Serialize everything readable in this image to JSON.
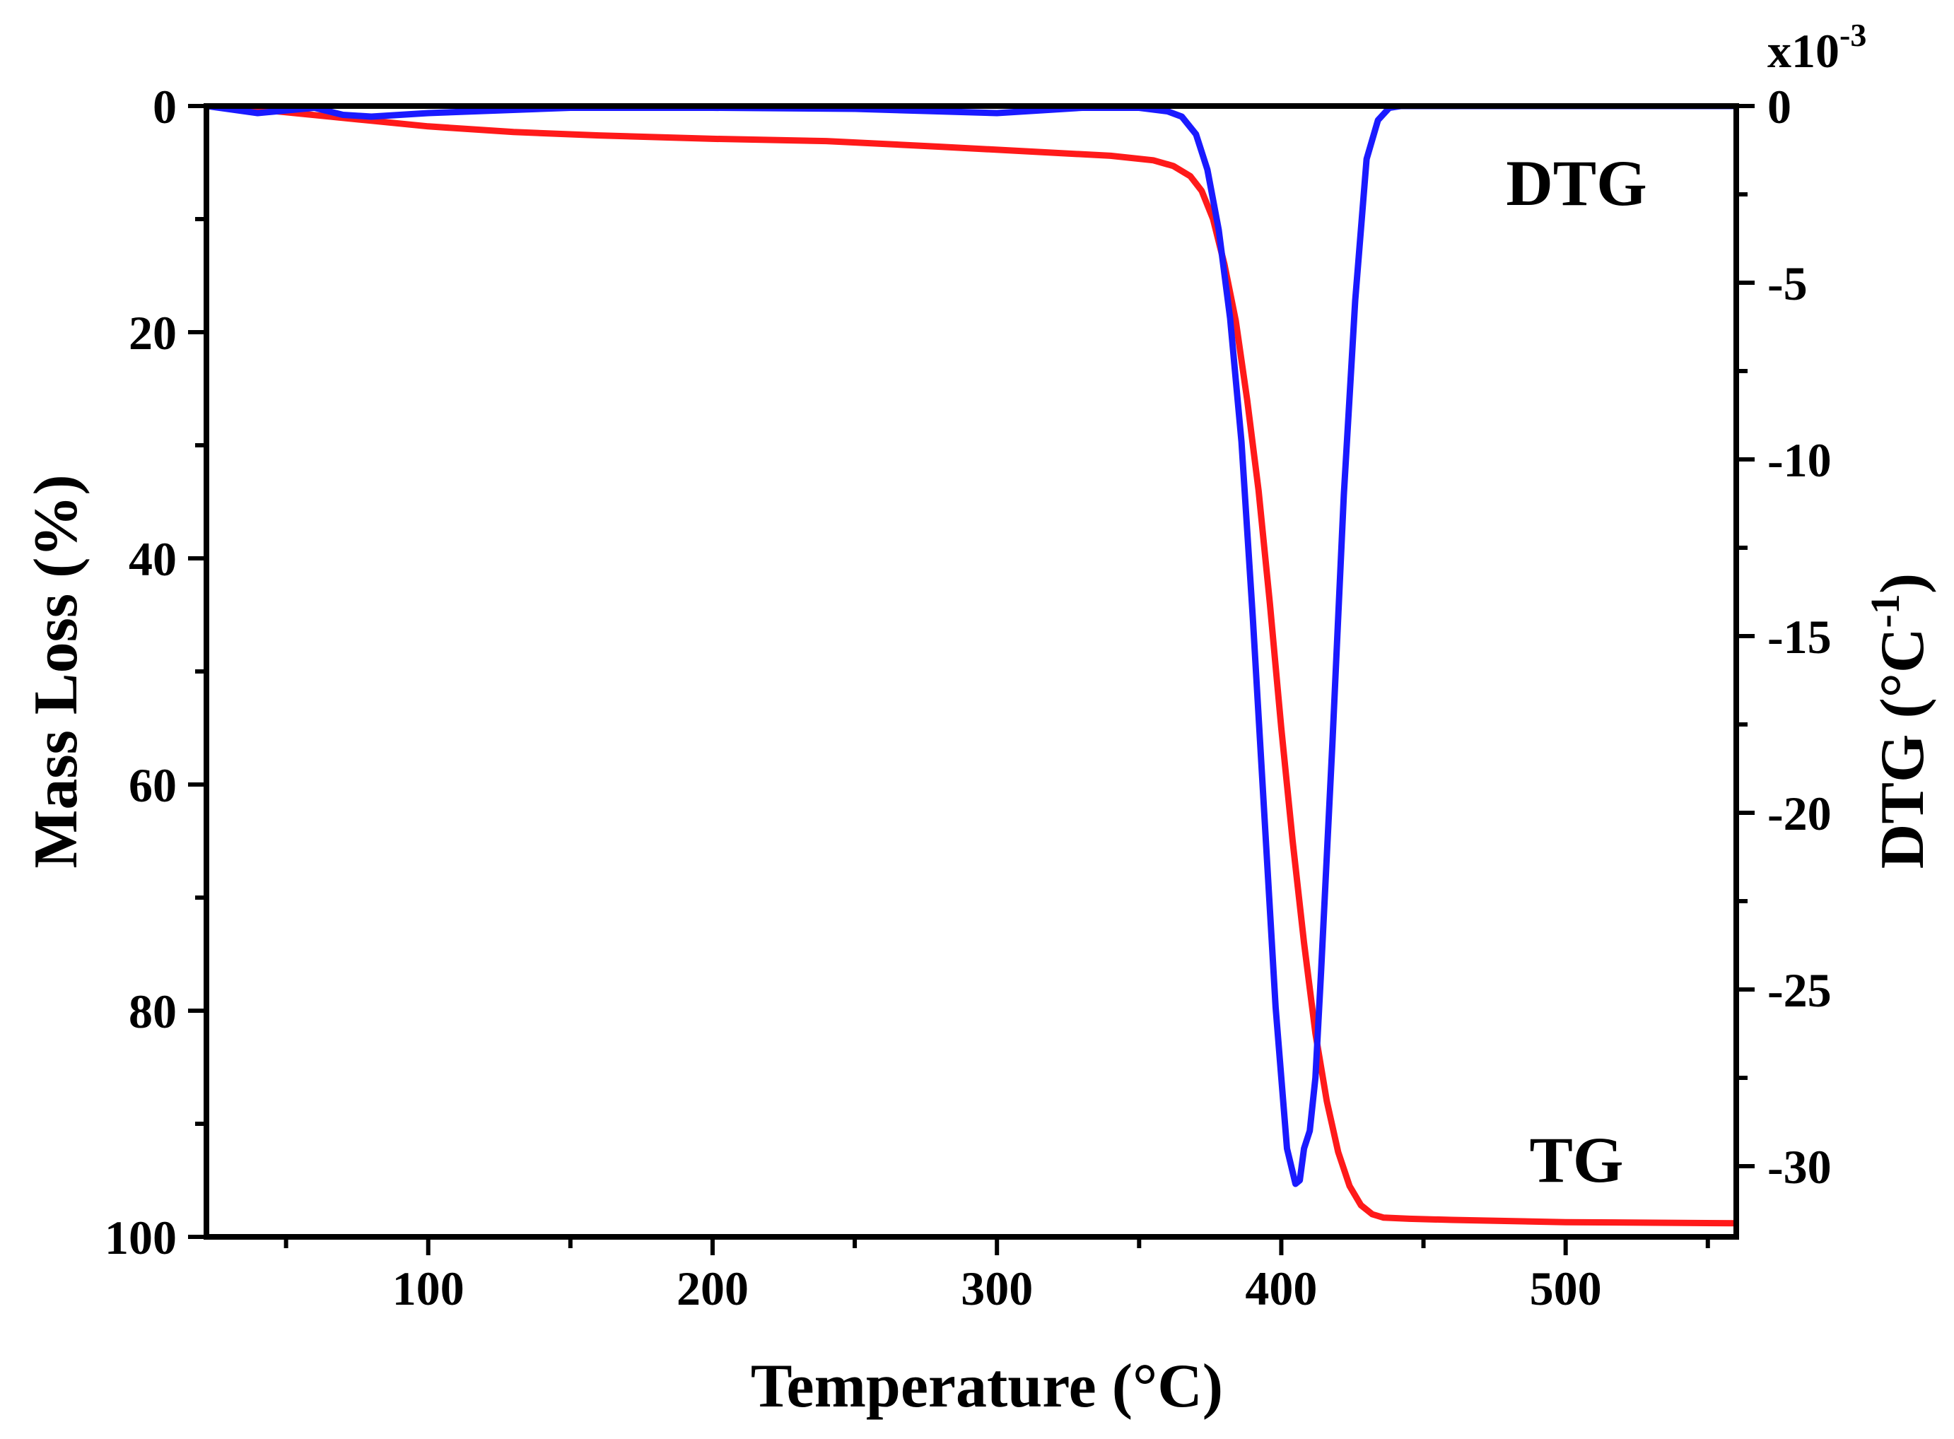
{
  "chart_data": {
    "type": "line",
    "x_axis": {
      "title": "Temperature (°C)",
      "range": [
        22,
        560
      ],
      "major_ticks": [
        100,
        200,
        300,
        400,
        500
      ],
      "minor_ticks": [
        50,
        150,
        250,
        350,
        450,
        550
      ]
    },
    "y_left": {
      "title": "Mass Loss (%)",
      "range": [
        0,
        100
      ],
      "inverted": true,
      "major_ticks": [
        0,
        20,
        40,
        60,
        80,
        100
      ],
      "minor_ticks": [
        10,
        30,
        50,
        70,
        90
      ]
    },
    "y_right": {
      "title_main": "DTG (°C",
      "title_sup": "-1",
      "title_close": ")",
      "multiplier_base": "x10",
      "multiplier_exp": "-3",
      "range": [
        0,
        -32
      ],
      "major_ticks": [
        0,
        -5,
        -10,
        -15,
        -20,
        -25,
        -30
      ],
      "minor_ticks": [
        -2.5,
        -7.5,
        -12.5,
        -17.5,
        -22.5,
        -27.5
      ]
    },
    "series": [
      {
        "name": "TG",
        "label": "TG",
        "axis": "left",
        "color": "#ff1a1a",
        "x": [
          22,
          40,
          60,
          80,
          100,
          130,
          160,
          200,
          240,
          280,
          310,
          340,
          355,
          362,
          368,
          372,
          376,
          380,
          384,
          388,
          392,
          396,
          400,
          404,
          408,
          412,
          416,
          420,
          424,
          428,
          432,
          436,
          445,
          460,
          500,
          560
        ],
        "y": [
          0,
          0.3,
          0.8,
          1.3,
          1.8,
          2.3,
          2.6,
          2.9,
          3.1,
          3.6,
          4.0,
          4.4,
          4.8,
          5.3,
          6.2,
          7.5,
          10,
          14,
          19,
          26,
          34,
          44,
          55,
          65,
          74,
          82,
          88,
          92.5,
          95.5,
          97.2,
          98,
          98.3,
          98.4,
          98.5,
          98.7,
          98.8
        ]
      },
      {
        "name": "DTG",
        "label": "DTG",
        "axis": "right",
        "color": "#1a1aff",
        "x": [
          22,
          40,
          60,
          70,
          80,
          100,
          150,
          200,
          250,
          300,
          330,
          350,
          360,
          365,
          370,
          374,
          378,
          382,
          386,
          390,
          394,
          398,
          402,
          405,
          406.5,
          408,
          410,
          412,
          414,
          418,
          422,
          426,
          430,
          434,
          438,
          442,
          450,
          470,
          500,
          560
        ],
        "y": [
          0,
          -0.2,
          -0.05,
          -0.25,
          -0.3,
          -0.2,
          -0.05,
          -0.05,
          -0.08,
          -0.2,
          -0.05,
          -0.05,
          -0.15,
          -0.3,
          -0.8,
          -1.8,
          -3.5,
          -6,
          -9.5,
          -14.5,
          -20,
          -25.5,
          -29.5,
          -30.5,
          -30.4,
          -29.5,
          -29,
          -27.5,
          -24.5,
          -18,
          -11,
          -5.5,
          -1.5,
          -0.4,
          -0.05,
          0,
          0,
          0,
          0,
          0
        ]
      }
    ]
  }
}
